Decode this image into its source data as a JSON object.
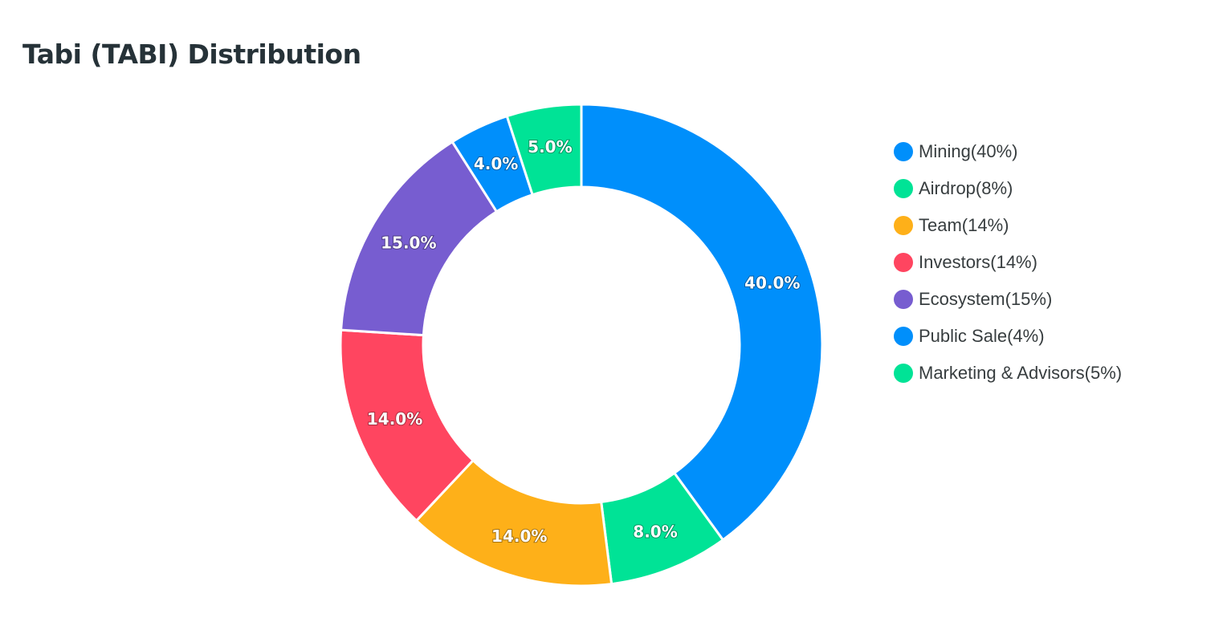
{
  "chart_data": {
    "type": "pie",
    "variant": "donut",
    "title": "Tabi (TABI) Distribution",
    "legend_position": "right",
    "series": [
      {
        "name": "Mining(40%)",
        "value": 40,
        "label": "40.0%",
        "color": "#008FFB"
      },
      {
        "name": "Airdrop(8%)",
        "value": 8,
        "label": "8.0%",
        "color": "#00E396"
      },
      {
        "name": "Team(14%)",
        "value": 14,
        "label": "14.0%",
        "color": "#FEB019"
      },
      {
        "name": "Investors(14%)",
        "value": 14,
        "label": "14.0%",
        "color": "#FF4560"
      },
      {
        "name": "Ecosystem(15%)",
        "value": 15,
        "label": "15.0%",
        "color": "#775DD0"
      },
      {
        "name": "Public Sale(4%)",
        "value": 4,
        "label": "4.0%",
        "color": "#008FFB"
      },
      {
        "name": "Marketing & Advisors(5%)",
        "value": 5,
        "label": "5.0%",
        "color": "#00E396"
      }
    ]
  }
}
